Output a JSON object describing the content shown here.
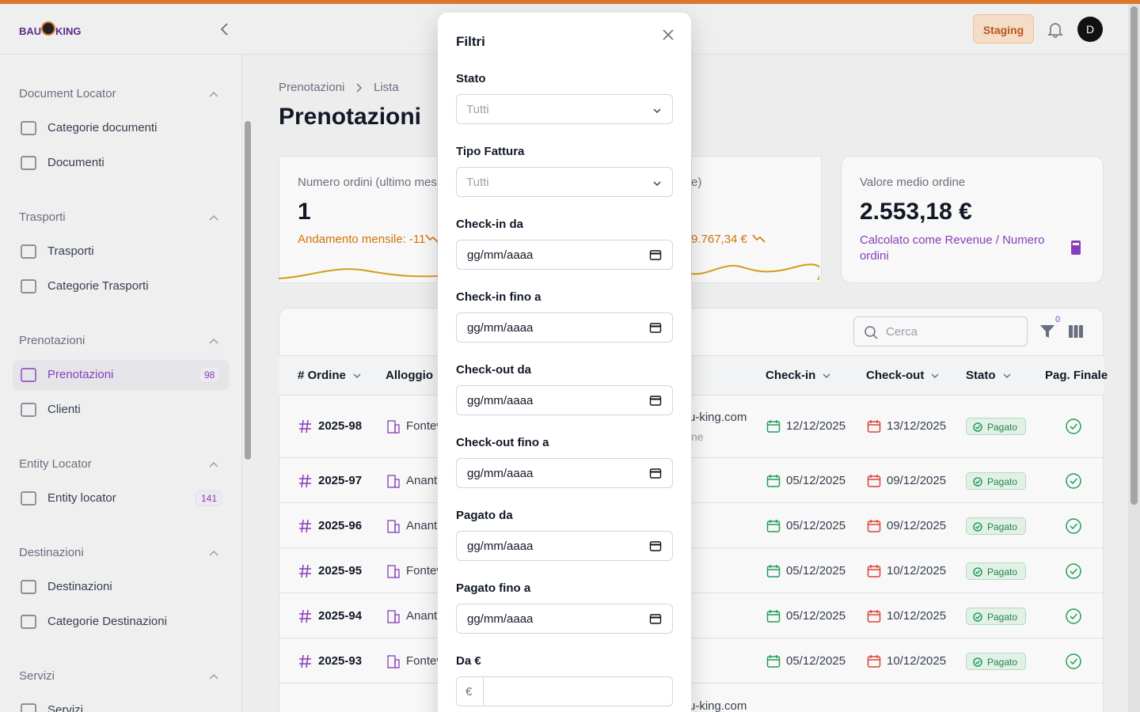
{
  "header": {
    "logo": [
      "BAU",
      "KING"
    ],
    "env": "Staging",
    "avatar": "D"
  },
  "sidebar": {
    "groups": [
      {
        "title": "Document Locator",
        "items": [
          {
            "label": "Categorie documenti"
          },
          {
            "label": "Documenti"
          }
        ]
      },
      {
        "title": "Trasporti",
        "items": [
          {
            "label": "Trasporti"
          },
          {
            "label": "Categorie Trasporti"
          }
        ]
      },
      {
        "title": "Prenotazioni",
        "items": [
          {
            "label": "Prenotazioni",
            "badge": 98,
            "active": true
          },
          {
            "label": "Clienti"
          }
        ]
      },
      {
        "title": "Entity Locator",
        "items": [
          {
            "label": "Entity locator",
            "badge": 141
          }
        ]
      },
      {
        "title": "Destinazioni",
        "items": [
          {
            "label": "Destinazioni"
          },
          {
            "label": "Categorie Destinazioni"
          }
        ]
      },
      {
        "title": "Servizi",
        "items": [
          {
            "label": "Servizi"
          }
        ]
      }
    ]
  },
  "page": {
    "breadcrumb": [
      "Prenotazioni",
      "Lista"
    ],
    "title": "Prenotazioni"
  },
  "cards": [
    {
      "label": "Numero ordini (ultimo mes",
      "value": "1",
      "note": "Andamento mensile: -11"
    },
    {
      "label": "e)",
      "note": "-9.767,34 €"
    },
    {
      "label": "Valore medio ordine",
      "value": "2.553,18 €",
      "note": "Calcolato come Revenue / Numero ordini"
    }
  ],
  "table": {
    "search_placeholder": "Cerca",
    "filter_count": 0,
    "columns": [
      "# Ordine",
      "Alloggio",
      "Check-in",
      "Check-out",
      "Stato",
      "Pag. Finale"
    ],
    "rows": [
      {
        "order": "2025-98",
        "alloggio": "Fontev",
        "email": "u-king.com",
        "email_sub": "ne",
        "checkin": "12/12/2025",
        "checkout": "13/12/2025",
        "stato": "Pagato"
      },
      {
        "order": "2025-97",
        "alloggio": "Ananta",
        "checkin": "05/12/2025",
        "checkout": "09/12/2025",
        "stato": "Pagato"
      },
      {
        "order": "2025-96",
        "alloggio": "Ananta",
        "checkin": "05/12/2025",
        "checkout": "09/12/2025",
        "stato": "Pagato"
      },
      {
        "order": "2025-95",
        "alloggio": "Fontev",
        "checkin": "05/12/2025",
        "checkout": "10/12/2025",
        "stato": "Pagato"
      },
      {
        "order": "2025-94",
        "alloggio": "Ananta",
        "checkin": "05/12/2025",
        "checkout": "10/12/2025",
        "stato": "Pagato"
      },
      {
        "order": "2025-93",
        "alloggio": "Fontev",
        "checkin": "05/12/2025",
        "checkout": "10/12/2025",
        "stato": "Pagato"
      },
      {
        "email": "u-king.com"
      }
    ]
  },
  "modal": {
    "title": "Filtri",
    "selects": [
      {
        "label": "Stato",
        "placeholder": "Tutti"
      },
      {
        "label": "Tipo Fattura",
        "placeholder": "Tutti"
      }
    ],
    "date_fields": [
      {
        "label": "Check-in da",
        "placeholder": "gg/mm/aaaa"
      },
      {
        "label": "Check-in fino a",
        "placeholder": "gg/mm/aaaa"
      },
      {
        "label": "Check-out da",
        "placeholder": "gg/mm/aaaa"
      },
      {
        "label": "Check-out fino a",
        "placeholder": "gg/mm/aaaa"
      },
      {
        "label": "Pagato da",
        "placeholder": "gg/mm/aaaa"
      },
      {
        "label": "Pagato fino a",
        "placeholder": "gg/mm/aaaa"
      }
    ],
    "amount_field": {
      "label": "Da €",
      "prefix": "€"
    }
  }
}
